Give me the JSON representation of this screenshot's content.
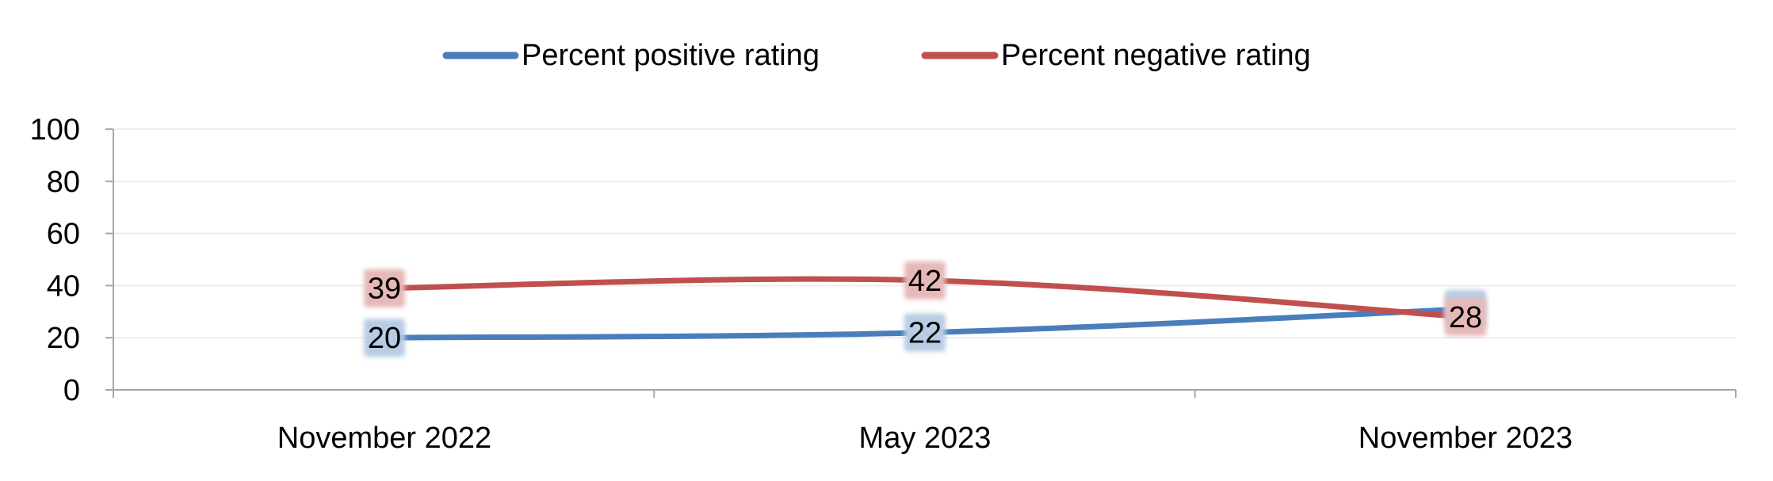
{
  "chart_data": {
    "type": "line",
    "title": "",
    "xlabel": "",
    "ylabel": "",
    "categories": [
      "November 2022",
      "May 2023",
      "November 2023"
    ],
    "ylim": [
      0,
      100
    ],
    "yticks": [
      0,
      20,
      40,
      60,
      80,
      100
    ],
    "grid": true,
    "legend_position": "top",
    "smooth": true,
    "series": [
      {
        "name": "Percent positive rating",
        "values": [
          20,
          22,
          31
        ],
        "labels": [
          "20",
          "22",
          ""
        ],
        "color": "#4a7ebb",
        "label_bg": "#b8cce4"
      },
      {
        "name": "Percent negative rating",
        "values": [
          39,
          42,
          28
        ],
        "labels": [
          "39",
          "42",
          "28"
        ],
        "color": "#c0504d",
        "label_bg": "#e6b9b8"
      }
    ],
    "colors": {
      "axis": "#a6a6a6",
      "grid": "#eeeeee"
    }
  }
}
